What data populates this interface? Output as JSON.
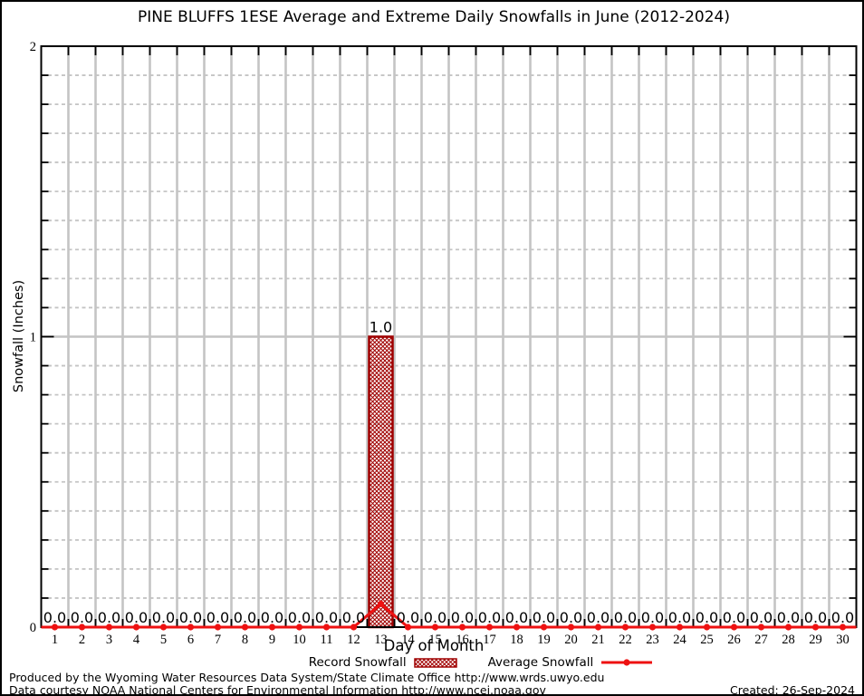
{
  "title": "PINE BLUFFS 1ESE Average and Extreme Daily Snowfalls in June (2012-2024)",
  "axes": {
    "ylabel": "Snowfall (Inches)",
    "xlabel": "Day of Month"
  },
  "legend": {
    "record_label": "Record Snowfall",
    "average_label": "Average Snowfall"
  },
  "footer": {
    "line1": "Produced by the Wyoming Water Resources Data System/State Climate Office http://www.wrds.uwyo.edu",
    "line2": "Data courtesy NOAA National Centers for Environmental Information http://www.ncei.noaa.gov",
    "created": "Created: 26-Sep-2024"
  },
  "colors": {
    "record": "#a00000",
    "average": "#ee1111",
    "grid": "#c4c4c4",
    "axis": "#000000",
    "text": "#000000",
    "background": "#ffffff"
  },
  "chart_data": {
    "type": "bar",
    "title": "PINE BLUFFS 1ESE Average and Extreme Daily Snowfalls in June (2012-2024)",
    "xlabel": "Day of Month",
    "ylabel": "Snowfall (Inches)",
    "x": [
      1,
      2,
      3,
      4,
      5,
      6,
      7,
      8,
      9,
      10,
      11,
      12,
      13,
      14,
      15,
      16,
      17,
      18,
      19,
      20,
      21,
      22,
      23,
      24,
      25,
      26,
      27,
      28,
      29,
      30
    ],
    "series": [
      {
        "name": "Record Snowfall",
        "type": "bar",
        "values": [
          0,
          0,
          0,
          0,
          0,
          0,
          0,
          0,
          0,
          0,
          0,
          0,
          1.0,
          0,
          0,
          0,
          0,
          0,
          0,
          0,
          0,
          0,
          0,
          0,
          0,
          0,
          0,
          0,
          0,
          0
        ]
      },
      {
        "name": "Average Snowfall",
        "type": "line",
        "values": [
          0,
          0,
          0,
          0,
          0,
          0,
          0,
          0,
          0,
          0,
          0,
          0,
          0.08,
          0,
          0,
          0,
          0,
          0,
          0,
          0,
          0,
          0,
          0,
          0,
          0,
          0,
          0,
          0,
          0,
          0
        ]
      }
    ],
    "ylim": [
      0,
      2
    ],
    "yticks": [
      0,
      1,
      2
    ],
    "minor_tick_step": 0.1,
    "value_label_decimals": 1,
    "grid": true,
    "legend_position": "bottom"
  }
}
